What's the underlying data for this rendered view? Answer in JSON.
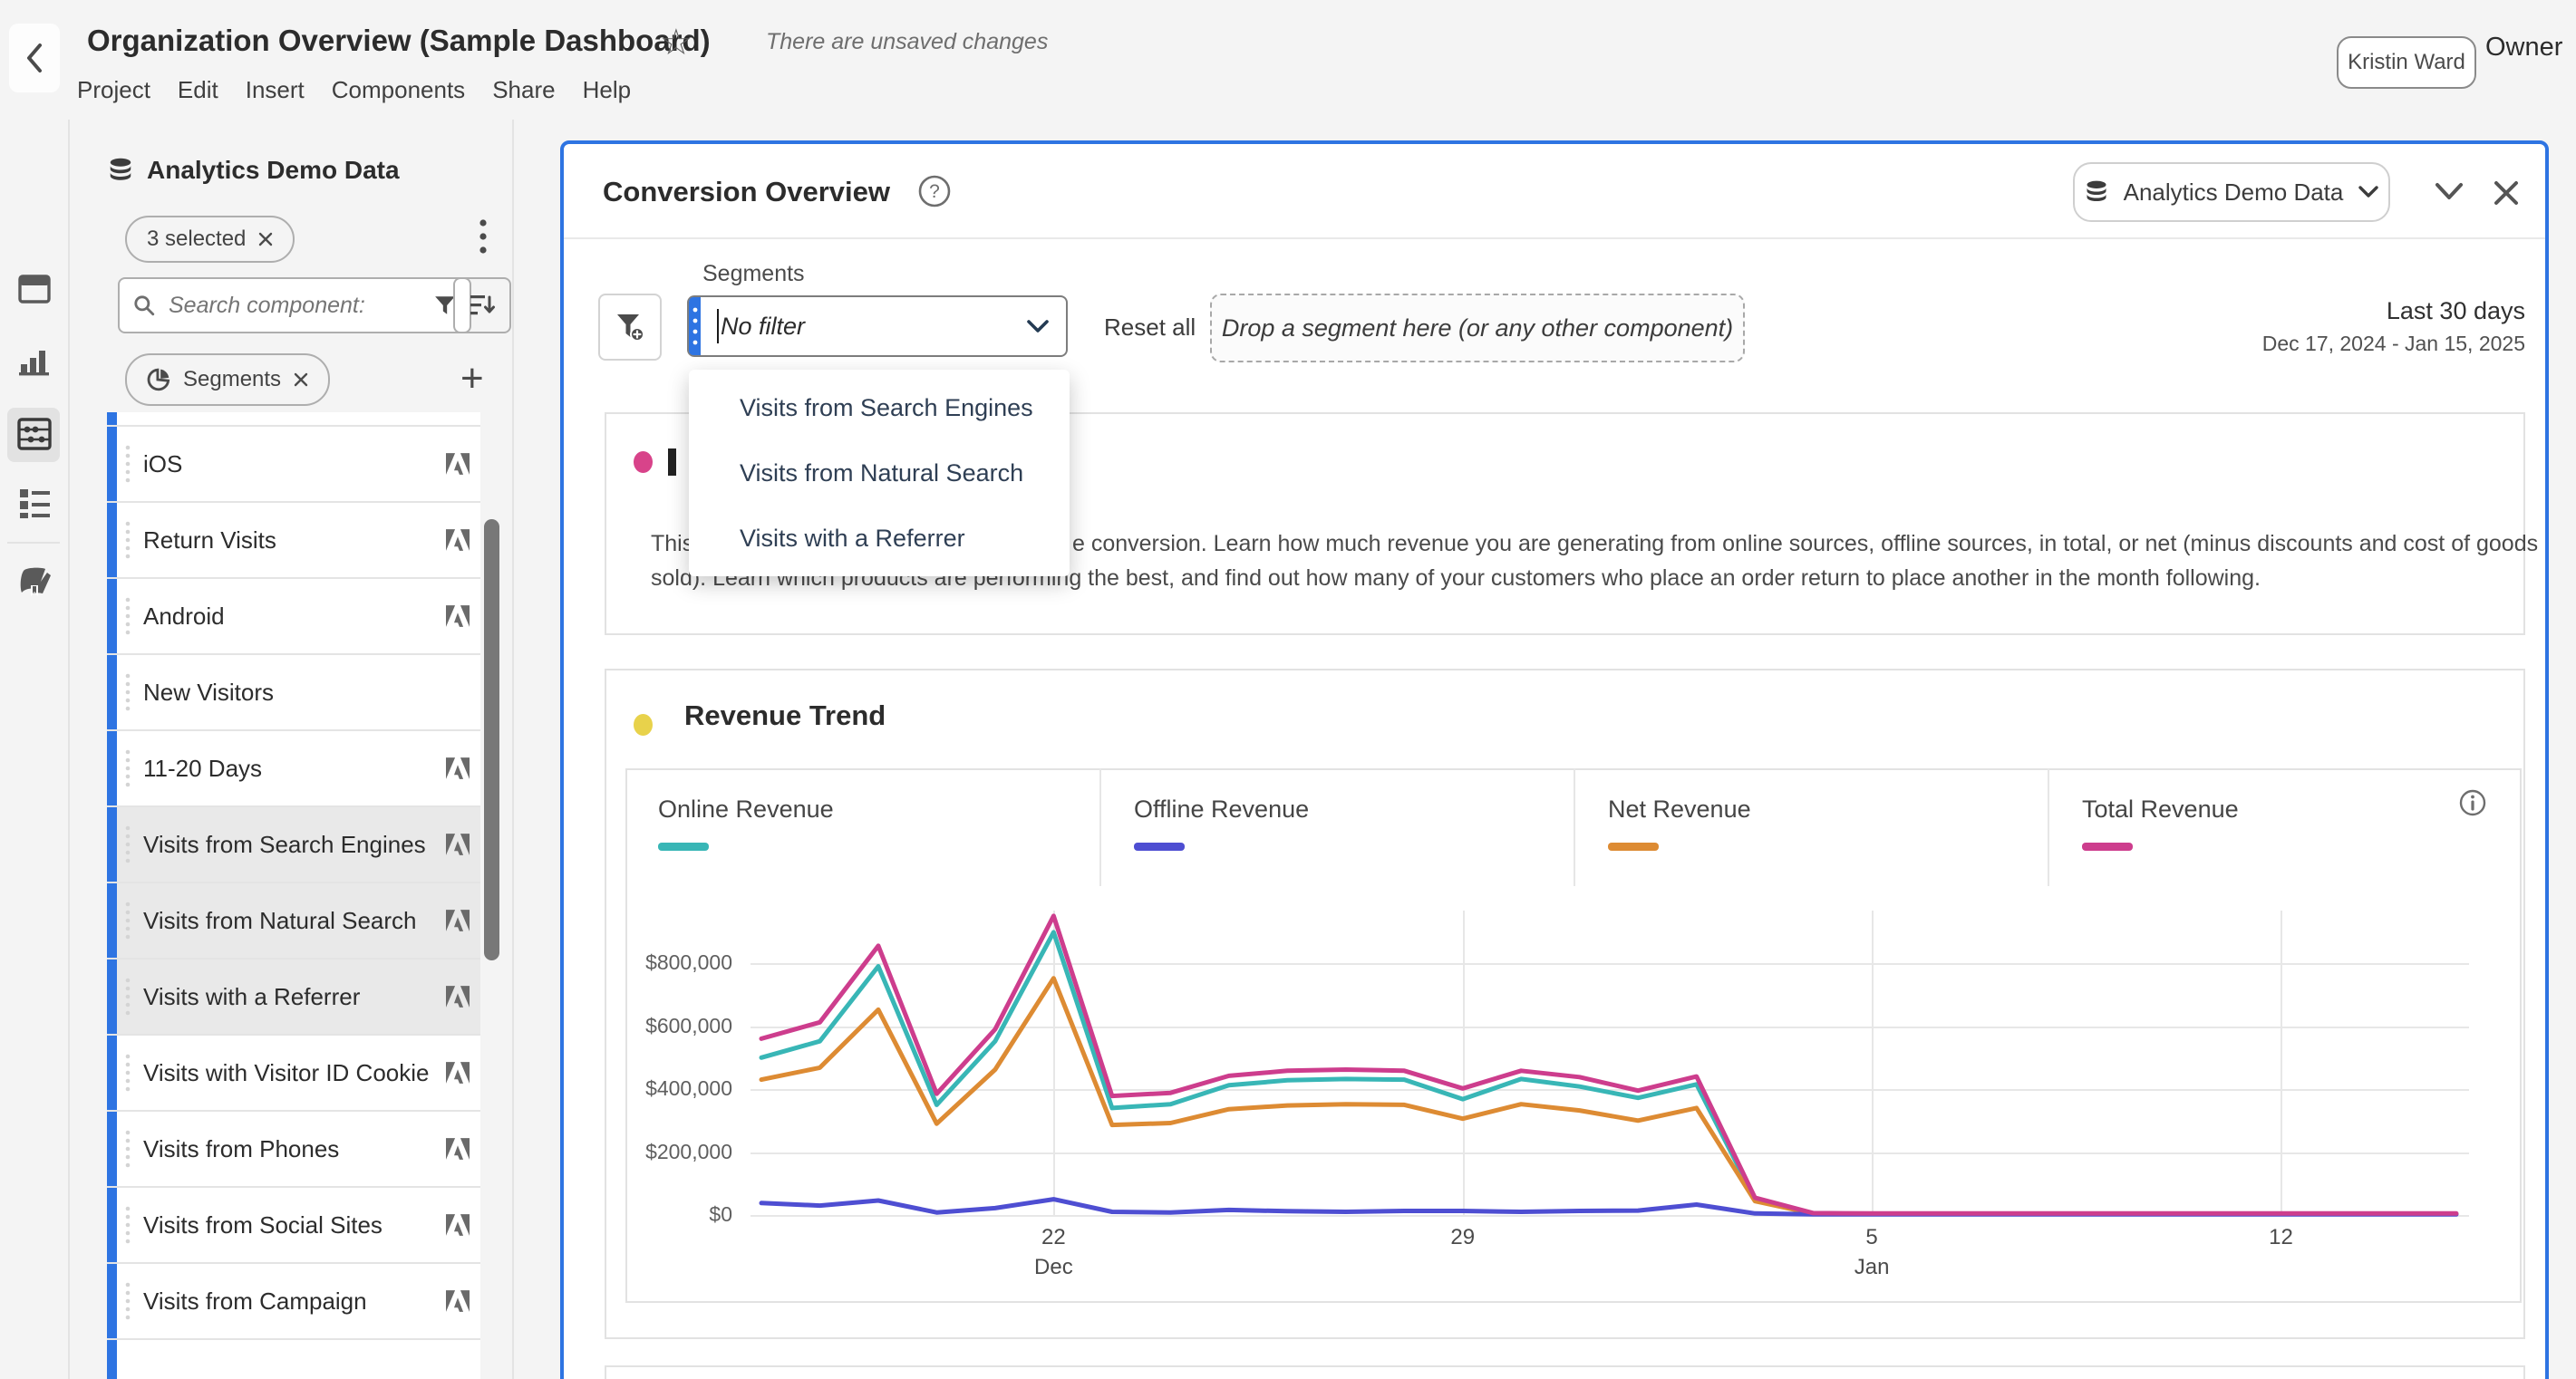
{
  "colors": {
    "accent_blue": "#2e74e2",
    "pink_dot": "#d8438a",
    "yellow_dot": "#e8d24b",
    "selected_row_bg": "#e9e9e9"
  },
  "header": {
    "back_icon": "chevron-left",
    "title": "Organization Overview (Sample Dashboard)",
    "star_icon": "☆",
    "unsaved_notice": "There are unsaved changes",
    "menus": [
      "Project",
      "Edit",
      "Insert",
      "Components",
      "Share",
      "Help"
    ],
    "user_name": "Kristin Ward",
    "role_label": "Owner"
  },
  "sidebar": {
    "dataset_name": "Analytics Demo Data",
    "selected_chip": "3 selected",
    "search_placeholder": "Search component:",
    "component_type_chip": "Segments",
    "items": [
      {
        "label": "iOS",
        "selected": false,
        "logo": true
      },
      {
        "label": "Return Visits",
        "selected": false,
        "logo": true
      },
      {
        "label": "Android",
        "selected": false,
        "logo": true
      },
      {
        "label": "New Visitors",
        "selected": false,
        "logo": false
      },
      {
        "label": "11-20 Days",
        "selected": false,
        "logo": true
      },
      {
        "label": "Visits from Search Engines",
        "selected": true,
        "logo": true
      },
      {
        "label": "Visits from Natural Search",
        "selected": true,
        "logo": true
      },
      {
        "label": "Visits with a Referrer",
        "selected": true,
        "logo": true
      },
      {
        "label": "Visits with Visitor ID Cookie",
        "selected": false,
        "logo": true
      },
      {
        "label": "Visits from Phones",
        "selected": false,
        "logo": true
      },
      {
        "label": "Visits from Social Sites",
        "selected": false,
        "logo": true
      },
      {
        "label": "Visits from Campaign",
        "selected": false,
        "logo": true
      }
    ]
  },
  "panel": {
    "title": "Conversion Overview",
    "dataset_button": "Analytics Demo Data",
    "segments_label": "Segments",
    "segment_filter_value": "No filter",
    "reset_all": "Reset all",
    "dropzone_text": "Drop a segment here (or any other component)",
    "date_primary": "Last 30 days",
    "date_secondary": "Dec 17, 2024 - Jan 15, 2025",
    "dropdown_options": [
      "Visits from Search Engines",
      "Visits from Natural Search",
      "Visits with a Referrer"
    ],
    "description_line1_start": "This",
    "description_line1_rest": "e conversion.  Learn how much revenue you are generating from online sources, offline sources, in total, or net (minus discounts and cost of goods",
    "description_line2": "sold).  Learn which products are performing the best, and find out how many of your customers who place an order return to place another in the month following."
  },
  "chart_data": {
    "type": "line",
    "title": "Revenue Trend",
    "x": [
      "Dec 17",
      "Dec 18",
      "Dec 19",
      "Dec 20",
      "Dec 21",
      "Dec 22",
      "Dec 23",
      "Dec 24",
      "Dec 25",
      "Dec 26",
      "Dec 27",
      "Dec 28",
      "Dec 29",
      "Dec 30",
      "Dec 31",
      "Jan 1",
      "Jan 2",
      "Jan 3",
      "Jan 4",
      "Jan 5",
      "Jan 6",
      "Jan 7",
      "Jan 8",
      "Jan 9",
      "Jan 10",
      "Jan 11",
      "Jan 12",
      "Jan 13",
      "Jan 14",
      "Jan 15"
    ],
    "x_axis_ticks": [
      {
        "i": 5,
        "label": "22",
        "sub": "Dec"
      },
      {
        "i": 12,
        "label": "29",
        "sub": ""
      },
      {
        "i": 19,
        "label": "5",
        "sub": "Jan"
      },
      {
        "i": 26,
        "label": "12",
        "sub": ""
      }
    ],
    "y_ticks": [
      "$0",
      "$200,000",
      "$400,000",
      "$600,000",
      "$800,000"
    ],
    "ylim": [
      0,
      970000
    ],
    "grid": true,
    "legend_position": "top",
    "series": [
      {
        "name": "Online Revenue",
        "color": "#38b6b6",
        "values": [
          500000,
          552000,
          790000,
          350000,
          552000,
          898000,
          340000,
          352000,
          412000,
          428000,
          432000,
          430000,
          368000,
          432000,
          408000,
          372000,
          415000,
          50000,
          5000,
          4000,
          4000,
          4000,
          4000,
          4000,
          4000,
          4000,
          4000,
          4000,
          4000,
          4000
        ]
      },
      {
        "name": "Offline Revenue",
        "color": "#4e4ed2",
        "values": [
          38000,
          30000,
          46000,
          8000,
          22000,
          50000,
          10000,
          8000,
          16000,
          12000,
          10000,
          13000,
          13000,
          10000,
          13000,
          14000,
          33000,
          5000,
          2000,
          2000,
          2000,
          2000,
          2000,
          2000,
          2000,
          2000,
          2000,
          2000,
          2000,
          2000
        ]
      },
      {
        "name": "Net Revenue",
        "color": "#dd8b33",
        "values": [
          430000,
          468000,
          652000,
          290000,
          462000,
          752000,
          286000,
          292000,
          336000,
          348000,
          352000,
          350000,
          306000,
          352000,
          332000,
          300000,
          340000,
          44000,
          4000,
          3000,
          3000,
          3000,
          3000,
          3000,
          3000,
          3000,
          3000,
          3000,
          3000,
          3000
        ]
      },
      {
        "name": "Total Revenue",
        "color": "#cd3d8d",
        "values": [
          560000,
          612000,
          855000,
          385000,
          590000,
          950000,
          378000,
          388000,
          442000,
          458000,
          462000,
          458000,
          402000,
          458000,
          438000,
          395000,
          440000,
          55000,
          6000,
          5000,
          5000,
          5000,
          5000,
          5000,
          5000,
          5000,
          5000,
          5000,
          5000,
          5000
        ]
      }
    ]
  }
}
